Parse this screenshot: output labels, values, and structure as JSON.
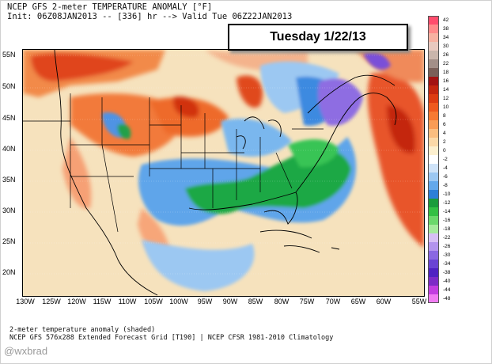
{
  "header": {
    "line1": "NCEP GFS 2-meter TEMPERATURE ANOMALY [°F]",
    "line2": "Init: 06Z08JAN2013 -- [336] hr --> Valid Tue 06Z22JAN2013"
  },
  "date_box": "Tuesday 1/22/13",
  "latitude_labels": [
    "55N",
    "50N",
    "45N",
    "40N",
    "35N",
    "30N",
    "25N",
    "20N"
  ],
  "longitude_labels": [
    "130W",
    "125W",
    "120W",
    "115W",
    "110W",
    "105W",
    "100W",
    "95W",
    "90W",
    "85W",
    "80W",
    "75W",
    "70W",
    "65W",
    "60W",
    "55W"
  ],
  "colorbar": {
    "ticks": [
      "42",
      "38",
      "34",
      "30",
      "26",
      "22",
      "18",
      "16",
      "14",
      "12",
      "10",
      "8",
      "6",
      "4",
      "2",
      "0",
      "-2",
      "-4",
      "-6",
      "-8",
      "-10",
      "-12",
      "-14",
      "-16",
      "-18",
      "-22",
      "-26",
      "-30",
      "-34",
      "-38",
      "-40",
      "-44",
      "-48"
    ],
    "colors": [
      "#ff4d6d",
      "#ff8a8a",
      "#f7b1a1",
      "#e8c9bf",
      "#c9b5ab",
      "#a38f88",
      "#7a5f58",
      "#a31212",
      "#c4260f",
      "#dd3c12",
      "#ee5a1e",
      "#f67a32",
      "#f99c55",
      "#fbbe80",
      "#fcd9a8",
      "#fdf0cf",
      "#ffffff",
      "#cfe3f8",
      "#9cc8f2",
      "#64a8ea",
      "#2d7fd8",
      "#1a9c3c",
      "#33c044",
      "#6bd86b",
      "#a6ea9c",
      "#d7bff5",
      "#b394ee",
      "#8a68e2",
      "#6a44d4",
      "#4f22c2",
      "#7d2bc7",
      "#c23ee0",
      "#f07cf2"
    ]
  },
  "footer": {
    "line1": "2-meter temperature anomaly (shaded)",
    "line2": "NCEP GFS 576x288 Extended Forecast Grid [T190] | NCEP CFSR 1981-2010 Climatology"
  },
  "watermark": "@wxbrad"
}
